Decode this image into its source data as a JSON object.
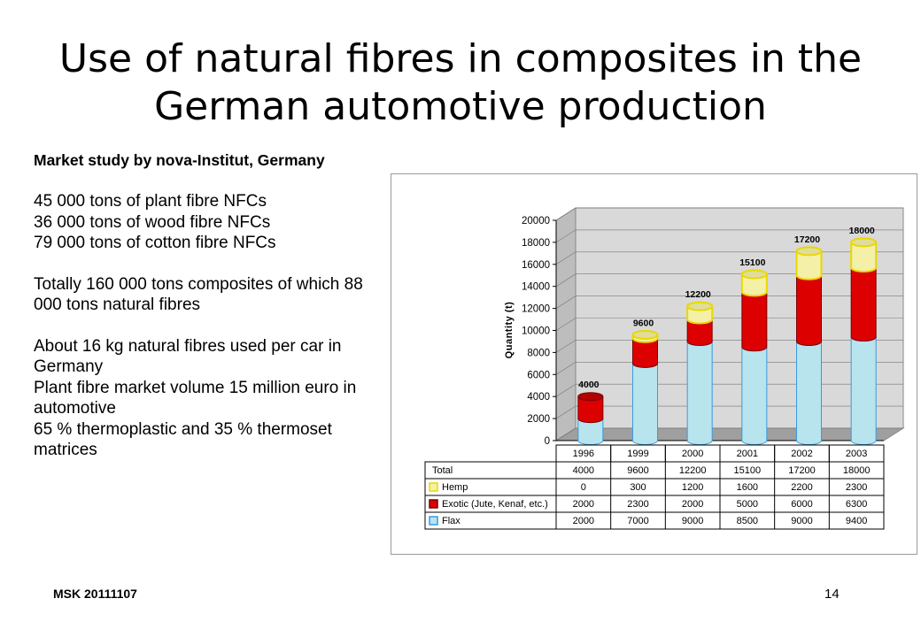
{
  "slide": {
    "title": "Use of natural fibres in composites in the German automotive production",
    "footer_left": "MSK 20111107",
    "page_number": "14"
  },
  "left_text": {
    "heading": "Market study by nova-Institut, Germany",
    "lines_1": [
      "45 000 tons of plant fibre NFCs",
      "36 000 tons of wood fibre NFCs",
      "79 000 tons of cotton fibre NFCs"
    ],
    "lines_2": [
      "Totally 160 000 tons composites of which 88 000 tons natural fibres"
    ],
    "lines_3": [
      "About 16 kg natural fibres used per car in Germany",
      "Plant fibre market volume 15 million euro in automotive",
      "65 % thermoplastic and 35 % thermoset matrices"
    ]
  },
  "chart_data": {
    "type": "bar",
    "stacked": true,
    "categories": [
      "1996",
      "1999",
      "2000",
      "2001",
      "2002",
      "2003"
    ],
    "ylabel": "Quantity (t)",
    "ylim": [
      0,
      20000
    ],
    "yticks": [
      0,
      2000,
      4000,
      6000,
      8000,
      10000,
      12000,
      14000,
      16000,
      18000,
      20000
    ],
    "series": [
      {
        "name": "Flax",
        "values": [
          2000,
          7000,
          9000,
          8500,
          9000,
          9400
        ],
        "color": "#b8e4ee"
      },
      {
        "name": "Exotic (Jute, Kenaf, etc.)",
        "values": [
          2000,
          2300,
          2000,
          5000,
          6000,
          6300
        ],
        "color": "#dd0000"
      },
      {
        "name": "Hemp",
        "values": [
          0,
          300,
          1200,
          1600,
          2200,
          2300
        ],
        "color": "#f4f0a8"
      }
    ],
    "totals": {
      "name": "Total",
      "values": [
        4000,
        9600,
        12200,
        15100,
        17200,
        18000
      ]
    },
    "data_labels": [
      "4000",
      "9600",
      "12200",
      "15100",
      "17200",
      "18000"
    ],
    "table": {
      "rows": [
        {
          "label": "Total",
          "values": [
            "4000",
            "9600",
            "12200",
            "15100",
            "17200",
            "18000"
          ]
        },
        {
          "label": "Hemp",
          "values": [
            "0",
            "300",
            "1200",
            "1600",
            "2200",
            "2300"
          ]
        },
        {
          "label": "Exotic (Jute, Kenaf, etc.)",
          "values": [
            "2000",
            "2300",
            "2000",
            "5000",
            "6000",
            "6300"
          ]
        },
        {
          "label": "Flax",
          "values": [
            "2000",
            "7000",
            "9000",
            "8500",
            "9000",
            "9400"
          ]
        }
      ]
    }
  }
}
